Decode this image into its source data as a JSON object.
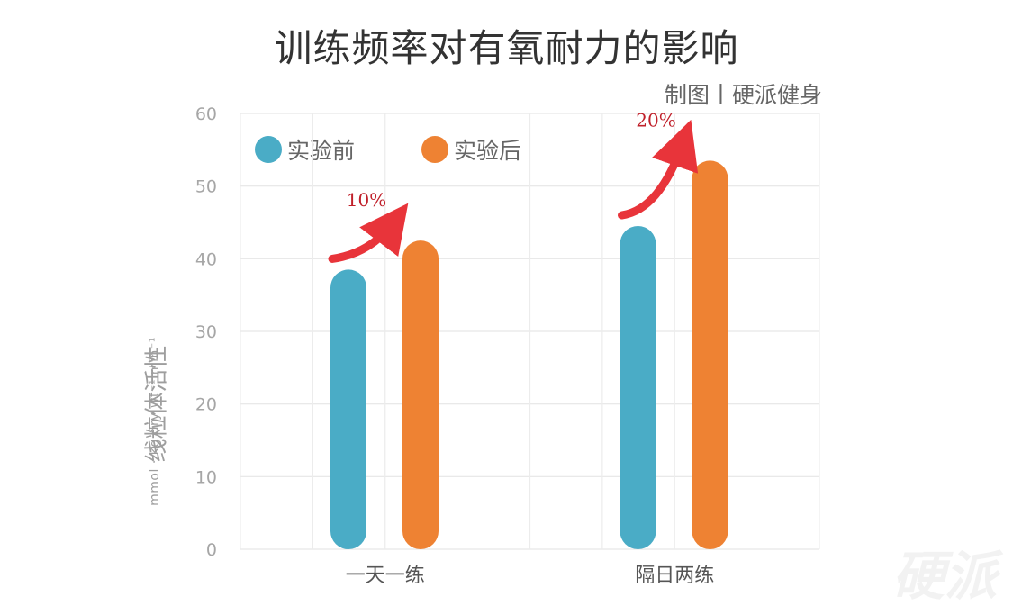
{
  "header": {
    "title": "训练频率对有氧耐力的影响",
    "credit": "制图丨硬派健身",
    "watermark": "硬派"
  },
  "chart_data": {
    "type": "bar",
    "title": "训练频率对有氧耐力的影响",
    "ylabel": "线粒体活性",
    "ylabel_unit": "mmol · kg dry wt⁻¹ min⁻¹",
    "xlabel": "",
    "categories": [
      "一天一练",
      "隔日两练"
    ],
    "series": [
      {
        "name": "实验前",
        "color": "#4aacc6",
        "values": [
          38.5,
          44.5
        ]
      },
      {
        "name": "实验后",
        "color": "#ee8233",
        "values": [
          42.5,
          53.5
        ]
      }
    ],
    "ylim": [
      0,
      60
    ],
    "yticks": [
      0,
      10,
      20,
      30,
      40,
      50,
      60
    ],
    "grid": true,
    "legend_position": "top-left",
    "annotations": [
      {
        "text": "10%",
        "category": "一天一练",
        "color": "#e8343a"
      },
      {
        "text": "20%",
        "category": "隔日两练",
        "color": "#e8343a"
      }
    ]
  }
}
